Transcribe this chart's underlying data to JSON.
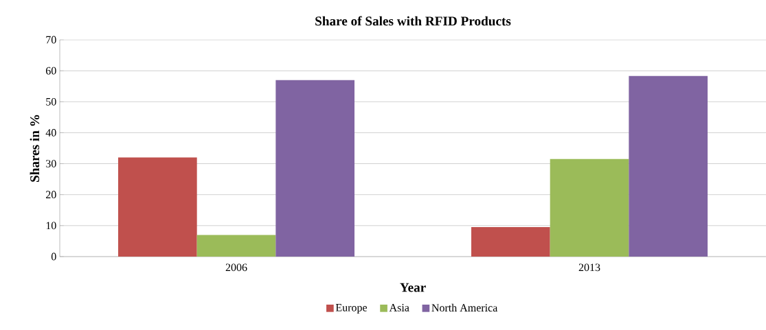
{
  "chart_data": {
    "type": "bar",
    "title": "Share of Sales with RFID Products",
    "xlabel": "Year",
    "ylabel": "Shares in %",
    "categories": [
      "2006",
      "2013"
    ],
    "series": [
      {
        "name": "Europe",
        "color": "#c0504d",
        "values": [
          32,
          9.5
        ]
      },
      {
        "name": "Asia",
        "color": "#9bbb59",
        "values": [
          7,
          31.5
        ]
      },
      {
        "name": "North America",
        "color": "#8064a2",
        "values": [
          57,
          58.3
        ]
      }
    ],
    "ylim": [
      0,
      70
    ],
    "yticks": [
      0,
      10,
      20,
      30,
      40,
      50,
      60,
      70
    ],
    "grid": "y",
    "legend": "bottom"
  }
}
